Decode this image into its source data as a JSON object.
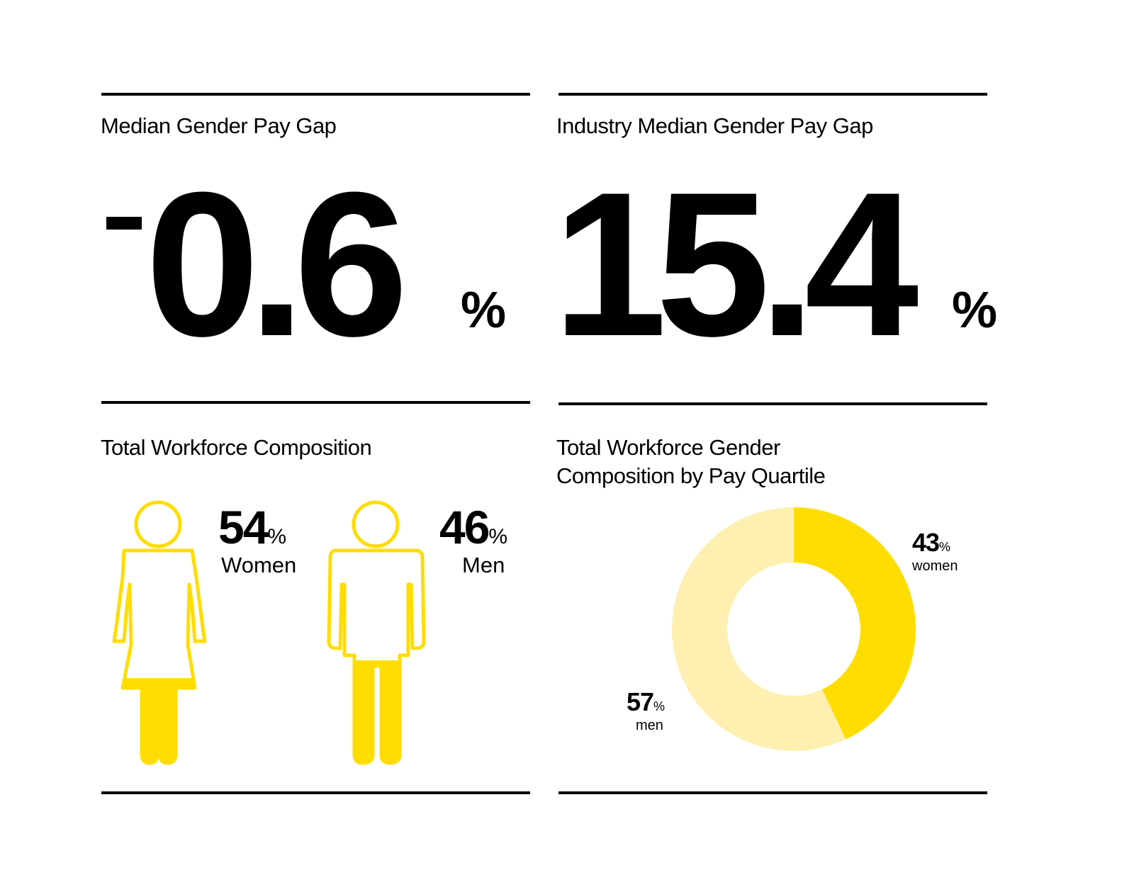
{
  "panels": {
    "median_gap": {
      "heading": "Median Gender Pay Gap",
      "value": "0.6",
      "sign": "-",
      "unit": "%"
    },
    "industry_gap": {
      "heading": "Industry Median Gender Pay Gap",
      "value": "15.4",
      "unit": "%"
    },
    "workforce": {
      "heading": "Total Workforce Composition",
      "women": {
        "value": "54",
        "unit": "%",
        "label": "Women",
        "icon": "woman-icon",
        "fill_fraction": 0.54
      },
      "men": {
        "value": "46",
        "unit": "%",
        "label": "Men",
        "icon": "man-icon",
        "fill_fraction": 0.46
      }
    },
    "quartile": {
      "heading_line1": "Total Workforce Gender",
      "heading_line2": "Composition by Pay Quartile",
      "women": {
        "value": "43",
        "unit": "%",
        "label": "women"
      },
      "men": {
        "value": "57",
        "unit": "%",
        "label": "men"
      }
    }
  },
  "colors": {
    "accent": "#FFDD00",
    "accent_light": "#FDF0B0",
    "text": "#000000",
    "rule": "#000000"
  },
  "chart_data": {
    "type": "pie",
    "categories": [
      "women",
      "men"
    ],
    "values": [
      43,
      57
    ],
    "title": "Total Workforce Gender Composition by Pay Quartile",
    "xlabel": "",
    "ylabel": ""
  }
}
